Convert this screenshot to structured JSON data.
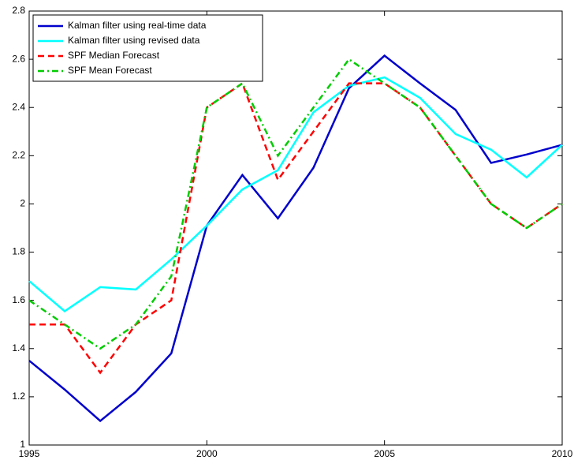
{
  "chart_data": {
    "type": "line",
    "x": [
      1995,
      1996,
      1997,
      1998,
      1999,
      2000,
      2001,
      2002,
      2003,
      2004,
      2005,
      2006,
      2007,
      2008,
      2009,
      2010
    ],
    "series": [
      {
        "name": "Kalman filter using real-time data",
        "color": "#0000cc",
        "linestyle": "solid",
        "values": [
          1.35,
          1.23,
          1.1,
          1.22,
          1.38,
          1.91,
          2.12,
          1.94,
          2.15,
          2.48,
          2.615,
          2.5,
          2.39,
          2.17,
          2.205,
          2.245
        ]
      },
      {
        "name": "Kalman filter using revised data",
        "color": "#00ffff",
        "linestyle": "solid",
        "values": [
          1.68,
          1.555,
          1.655,
          1.645,
          1.77,
          1.91,
          2.06,
          2.14,
          2.38,
          2.49,
          2.525,
          2.44,
          2.29,
          2.225,
          2.11,
          2.245
        ]
      },
      {
        "name": "SPF Median Forecast",
        "color": "#ff0000",
        "linestyle": "dashed",
        "values": [
          1.5,
          1.5,
          1.3,
          1.5,
          1.6,
          2.4,
          2.5,
          2.1,
          2.3,
          2.5,
          2.5,
          2.4,
          2.2,
          2.0,
          1.9,
          2.0
        ]
      },
      {
        "name": "SPF Mean Forecast",
        "color": "#00cc00",
        "linestyle": "dashdot",
        "values": [
          1.6,
          1.5,
          1.4,
          1.5,
          1.7,
          2.4,
          2.5,
          2.2,
          2.4,
          2.6,
          2.5,
          2.4,
          2.2,
          2.0,
          1.9,
          2.0
        ]
      }
    ],
    "xlim": [
      1995,
      2010
    ],
    "xticks": [
      1995,
      2000,
      2005,
      2010
    ],
    "ylim": [
      1,
      2.8
    ],
    "yticks": [
      1,
      1.2,
      1.4,
      1.6,
      1.8,
      2,
      2.2,
      2.4,
      2.6,
      2.8
    ],
    "grid": false,
    "legend": "top-left"
  }
}
